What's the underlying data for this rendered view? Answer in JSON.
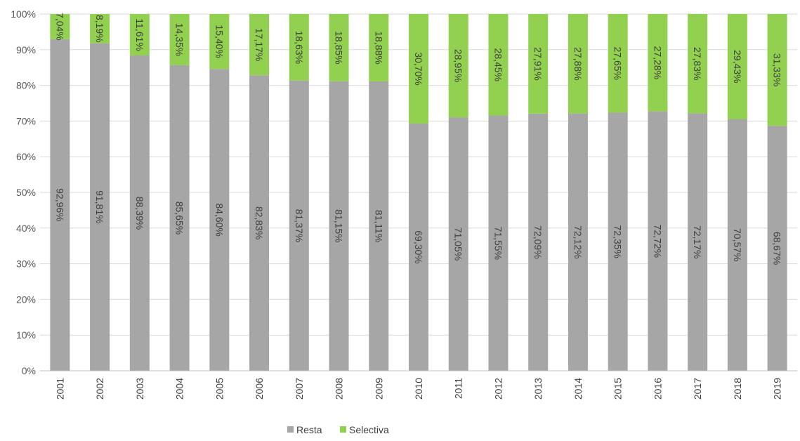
{
  "chart_data": {
    "type": "bar",
    "stacked": true,
    "percent_stacked": true,
    "categories": [
      "2001",
      "2002",
      "2003",
      "2004",
      "2005",
      "2006",
      "2007",
      "2008",
      "2009",
      "2010",
      "2011",
      "2012",
      "2013",
      "2014",
      "2015",
      "2016",
      "2017",
      "2018",
      "2019"
    ],
    "series": [
      {
        "name": "Resta",
        "color": "#a6a6a6",
        "values": [
          92.96,
          91.81,
          88.39,
          85.65,
          84.6,
          82.83,
          81.37,
          81.15,
          81.11,
          69.3,
          71.05,
          71.55,
          72.09,
          72.12,
          72.35,
          72.72,
          72.17,
          70.57,
          68.67
        ],
        "labels": [
          "92,96%",
          "91,81%",
          "88,39%",
          "85,65%",
          "84,60%",
          "82,83%",
          "81,37%",
          "81,15%",
          "81,11%",
          "69,30%",
          "71,05%",
          "71,55%",
          "72,09%",
          "72,12%",
          "72,35%",
          "72,72%",
          "72,17%",
          "70,57%",
          "68,67%"
        ]
      },
      {
        "name": "Selectiva",
        "color": "#92d050",
        "values": [
          7.04,
          8.19,
          11.61,
          14.35,
          15.4,
          17.17,
          18.63,
          18.85,
          18.88,
          30.7,
          28.95,
          28.45,
          27.91,
          27.88,
          27.65,
          27.28,
          27.83,
          29.43,
          31.33
        ],
        "labels": [
          "7,04%",
          "8,19%",
          "11,61%",
          "14,35%",
          "15,40%",
          "17,17%",
          "18,63%",
          "18,85%",
          "18,88%",
          "30,70%",
          "28,95%",
          "28,45%",
          "27,91%",
          "27,88%",
          "27,65%",
          "27,28%",
          "27,83%",
          "29,43%",
          "31,33%"
        ]
      }
    ],
    "title": "",
    "xlabel": "",
    "ylabel": "",
    "ylim": [
      0,
      100
    ],
    "y_ticks": [
      "0%",
      "10%",
      "20%",
      "30%",
      "40%",
      "50%",
      "60%",
      "70%",
      "80%",
      "90%",
      "100%"
    ],
    "x_tick_rotation": "vertical",
    "data_label_rotation": "vertical",
    "grid": "horizontal",
    "legend_position": "bottom-center"
  }
}
